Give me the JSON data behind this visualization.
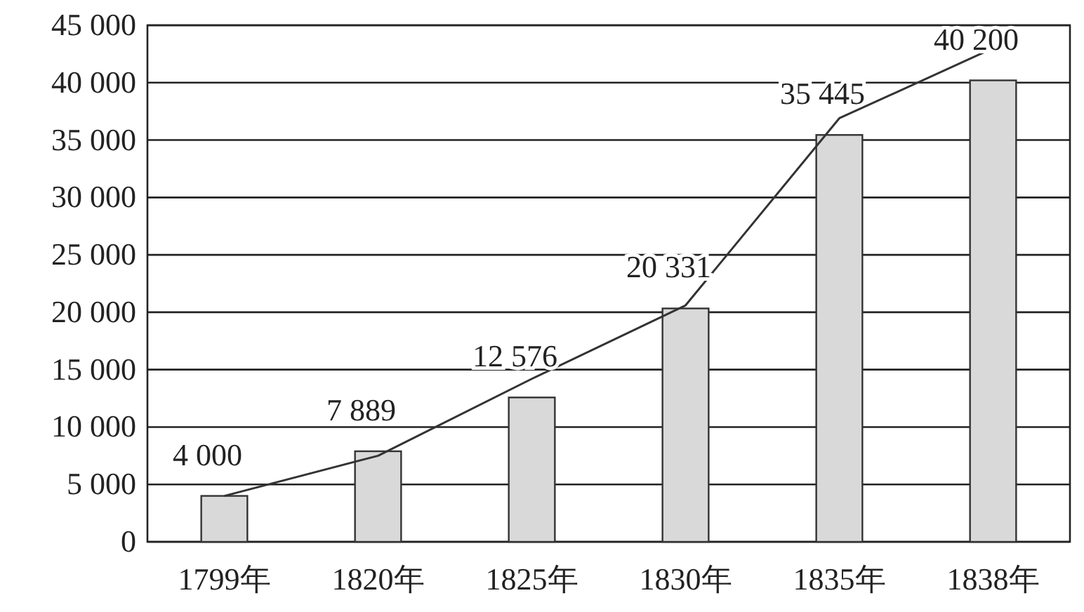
{
  "chart_data": {
    "type": "bar",
    "categories": [
      "1799年",
      "1820年",
      "1825年",
      "1830年",
      "1835年",
      "1838年"
    ],
    "series": [
      {
        "color": "#d9d9d9",
        "values": [
          4000,
          7889,
          12576,
          20331,
          35445,
          40200
        ],
        "value_labels": [
          "4 000",
          "7 889",
          "12 576",
          "20 331",
          "35 445",
          "40 200"
        ]
      },
      {
        "type": "line",
        "color": "#333333",
        "values": [
          4000,
          7500,
          14200,
          20600,
          36900,
          43000
        ]
      }
    ],
    "ylim": [
      0,
      45000
    ],
    "yticks": [
      {
        "value": 0,
        "label": "0"
      },
      {
        "value": 5000,
        "label": "5 000"
      },
      {
        "value": 10000,
        "label": "10 000"
      },
      {
        "value": 15000,
        "label": "15 000"
      },
      {
        "value": 20000,
        "label": "20 000"
      },
      {
        "value": 25000,
        "label": "25 000"
      },
      {
        "value": 30000,
        "label": "30 000"
      },
      {
        "value": 35000,
        "label": "35 000"
      },
      {
        "value": 40000,
        "label": "40 000"
      },
      {
        "value": 45000,
        "label": "45 000"
      }
    ],
    "grid": "y"
  }
}
